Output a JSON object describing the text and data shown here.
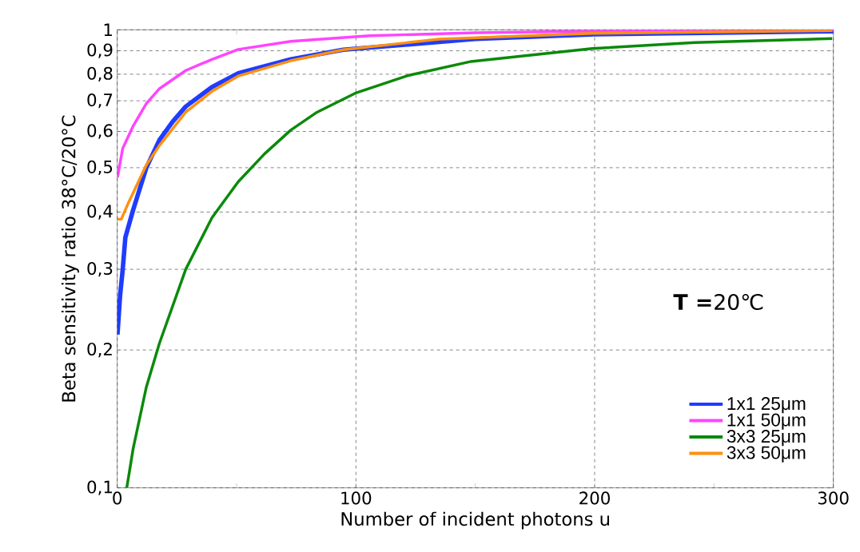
{
  "chart_data": {
    "type": "line",
    "xlabel": "Number of incident photons u",
    "ylabel": "Beta sensitivity ratio 38°C/20°C",
    "legend_title": "**T =**20℃",
    "log": "y",
    "grid": true,
    "legend": "bottom right",
    "line_style": "solid",
    "xlim": [
      0,
      300
    ],
    "xticks": [
      0,
      {
        "value": 50,
        "label": null
      },
      100,
      {
        "value": 150,
        "label": null
      },
      200,
      {
        "value": 250,
        "label": null
      },
      300
    ],
    "ylim": [
      0.1,
      1
    ],
    "yticks": [
      {
        "value": 0.1,
        "label": "0,1"
      },
      {
        "value": 0.2,
        "label": "0,2"
      },
      {
        "value": 0.3,
        "label": "0,3"
      },
      {
        "value": 0.4,
        "label": "0,4"
      },
      {
        "value": 0.5,
        "label": "0,5"
      },
      {
        "value": 0.6,
        "label": "0,6"
      },
      {
        "value": 0.7,
        "label": "0,7"
      },
      {
        "value": 0.8,
        "label": "0,8"
      },
      {
        "value": 0.9,
        "label": "0,9"
      },
      1
    ],
    "series": [
      {
        "name": "1x1 25μm",
        "color": "#1f3cff",
        "x": [
          0.1,
          1.2,
          2.3,
          3.4,
          6.7,
          12.2,
          17.7,
          23.2,
          28.7,
          39.7,
          50.7,
          72.7,
          94.7,
          150,
          200,
          300
        ],
        "values": [
          0.216,
          0.263,
          0.3,
          0.352,
          0.405,
          0.5,
          0.575,
          0.63,
          0.68,
          0.75,
          0.804,
          0.862,
          0.905,
          0.955,
          0.978,
          0.993
        ]
      },
      {
        "name": "1x1 50μm",
        "color": "#ff44ff",
        "x": [
          0.1,
          2.3,
          6.7,
          12.2,
          17.7,
          28.7,
          39.7,
          50.7,
          72.7,
          105.6,
          150,
          200,
          300
        ],
        "values": [
          0.476,
          0.551,
          0.617,
          0.69,
          0.744,
          0.815,
          0.862,
          0.906,
          0.944,
          0.971,
          0.985,
          0.993,
          0.998
        ]
      },
      {
        "name": "3x3 25μm",
        "color": "#0a8a0a",
        "x": [
          4.0,
          6.7,
          12.2,
          17.7,
          28.7,
          39.7,
          50.7,
          61.7,
          72.7,
          83.7,
          100.2,
          121.5,
          148.3,
          199,
          242,
          299.5
        ],
        "values": [
          0.1,
          0.122,
          0.166,
          0.207,
          0.3,
          0.389,
          0.466,
          0.536,
          0.604,
          0.661,
          0.729,
          0.794,
          0.853,
          0.91,
          0.938,
          0.957
        ]
      },
      {
        "name": "3x3 50μm",
        "color": "#ff9010",
        "x": [
          0.1,
          1.7,
          4.5,
          6.7,
          12.2,
          17.7,
          23.2,
          28.7,
          39.7,
          50.7,
          72.7,
          94.7,
          134.9,
          199,
          299.5
        ],
        "values": [
          0.386,
          0.386,
          0.417,
          0.441,
          0.507,
          0.559,
          0.608,
          0.661,
          0.734,
          0.793,
          0.856,
          0.905,
          0.954,
          0.982,
          0.996
        ]
      }
    ]
  }
}
